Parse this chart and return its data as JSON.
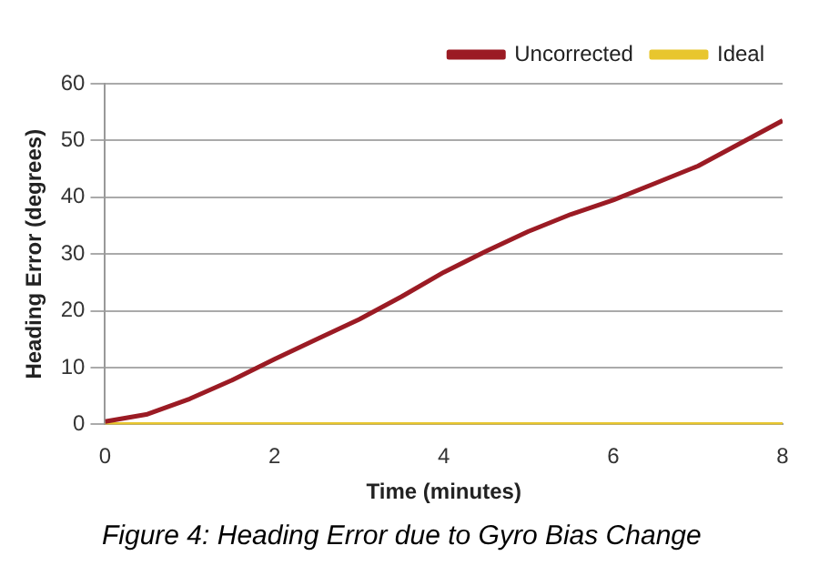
{
  "chart_data": {
    "type": "line",
    "xlabel": "Time (minutes)",
    "ylabel": "Heading Error (degrees)",
    "x": [
      0,
      0.5,
      1,
      1.5,
      2,
      2.5,
      3,
      3.5,
      4,
      4.5,
      5,
      5.5,
      6,
      6.5,
      7,
      7.5,
      8
    ],
    "series": [
      {
        "name": "Uncorrected",
        "color": "#9b1b24",
        "values": [
          0.5,
          1.8,
          4.5,
          7.8,
          11.5,
          15,
          18.5,
          22.5,
          26.8,
          30.5,
          34,
          37,
          39.5,
          42.5,
          45.5,
          49.5,
          53.5
        ]
      },
      {
        "name": "Ideal",
        "color": "#e8c62e",
        "values": [
          0,
          0,
          0,
          0,
          0,
          0,
          0,
          0,
          0,
          0,
          0,
          0,
          0,
          0,
          0,
          0,
          0
        ]
      }
    ],
    "xlim": [
      0,
      8
    ],
    "xticks": [
      0,
      2,
      4,
      6,
      8
    ],
    "ylim": [
      0,
      60
    ],
    "yticks": [
      0,
      10,
      20,
      30,
      40,
      50,
      60
    ],
    "grid": "y",
    "legend": "top right",
    "marker": "none",
    "line_style": "solid",
    "annotations": [
      "Figure 4: Heading Error due to Gyro Bias Change"
    ]
  }
}
